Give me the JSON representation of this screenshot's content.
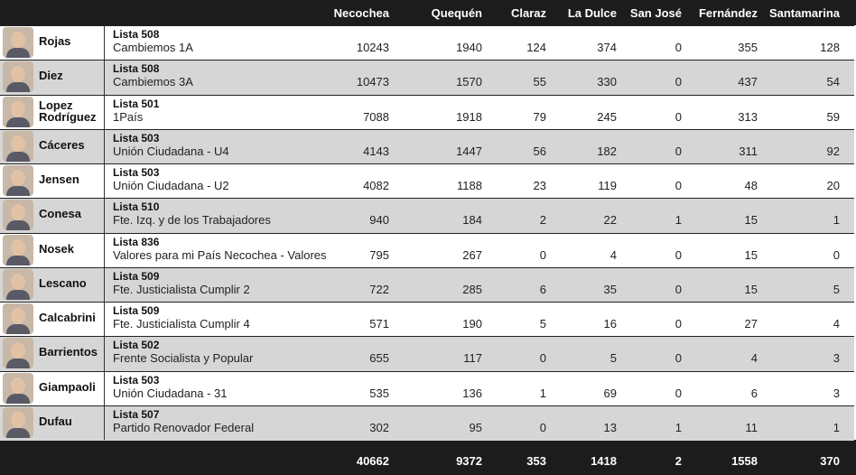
{
  "table": {
    "header": [
      "Necochea",
      "Quequén",
      "Claraz",
      "La Dulce",
      "San José",
      "Fernández",
      "Santamarina"
    ],
    "rows": [
      {
        "name": "Rojas",
        "lista": "Lista 508",
        "party": "Cambiemos 1A",
        "values": [
          10243,
          1940,
          124,
          374,
          0,
          355,
          128
        ]
      },
      {
        "name": "Diez",
        "lista": "Lista 508",
        "party": "Cambiemos 3A",
        "values": [
          10473,
          1570,
          55,
          330,
          0,
          437,
          54
        ]
      },
      {
        "name": "Lopez Rodríguez",
        "lista": "Lista 501",
        "party": "1País",
        "values": [
          7088,
          1918,
          79,
          245,
          0,
          313,
          59
        ]
      },
      {
        "name": "Cáceres",
        "lista": "Lista 503",
        "party": "Unión Ciudadana - U4",
        "values": [
          4143,
          1447,
          56,
          182,
          0,
          311,
          92
        ]
      },
      {
        "name": "Jensen",
        "lista": "Lista 503",
        "party": "Unión Ciudadana - U2",
        "values": [
          4082,
          1188,
          23,
          119,
          0,
          48,
          20
        ]
      },
      {
        "name": "Conesa",
        "lista": "Lista 510",
        "party": "Fte. Izq. y de los Trabajadores",
        "values": [
          940,
          184,
          2,
          22,
          1,
          15,
          1
        ]
      },
      {
        "name": "Nosek",
        "lista": "Lista 836",
        "party": "Valores para mi País Necochea - Valores",
        "values": [
          795,
          267,
          0,
          4,
          0,
          15,
          0
        ]
      },
      {
        "name": "Lescano",
        "lista": "Lista 509",
        "party": "Fte. Justicialista Cumplir 2",
        "values": [
          722,
          285,
          6,
          35,
          0,
          15,
          5
        ]
      },
      {
        "name": "Calcabrini",
        "lista": "Lista 509",
        "party": "Fte. Justicialista Cumplir 4",
        "values": [
          571,
          190,
          5,
          16,
          0,
          27,
          4
        ]
      },
      {
        "name": "Barrientos",
        "lista": "Lista 502",
        "party": "Frente Socialista y Popular",
        "values": [
          655,
          117,
          0,
          5,
          0,
          4,
          3
        ]
      },
      {
        "name": "Giampaoli",
        "lista": "Lista 503",
        "party": "Unión Ciudadana - 31",
        "values": [
          535,
          136,
          1,
          69,
          0,
          6,
          3
        ]
      },
      {
        "name": "Dufau",
        "lista": "Lista 507",
        "party": "Partido Renovador Federal",
        "values": [
          302,
          95,
          0,
          13,
          1,
          11,
          1
        ]
      }
    ],
    "totals": [
      40662,
      9372,
      353,
      1418,
      2,
      1558,
      370
    ]
  }
}
